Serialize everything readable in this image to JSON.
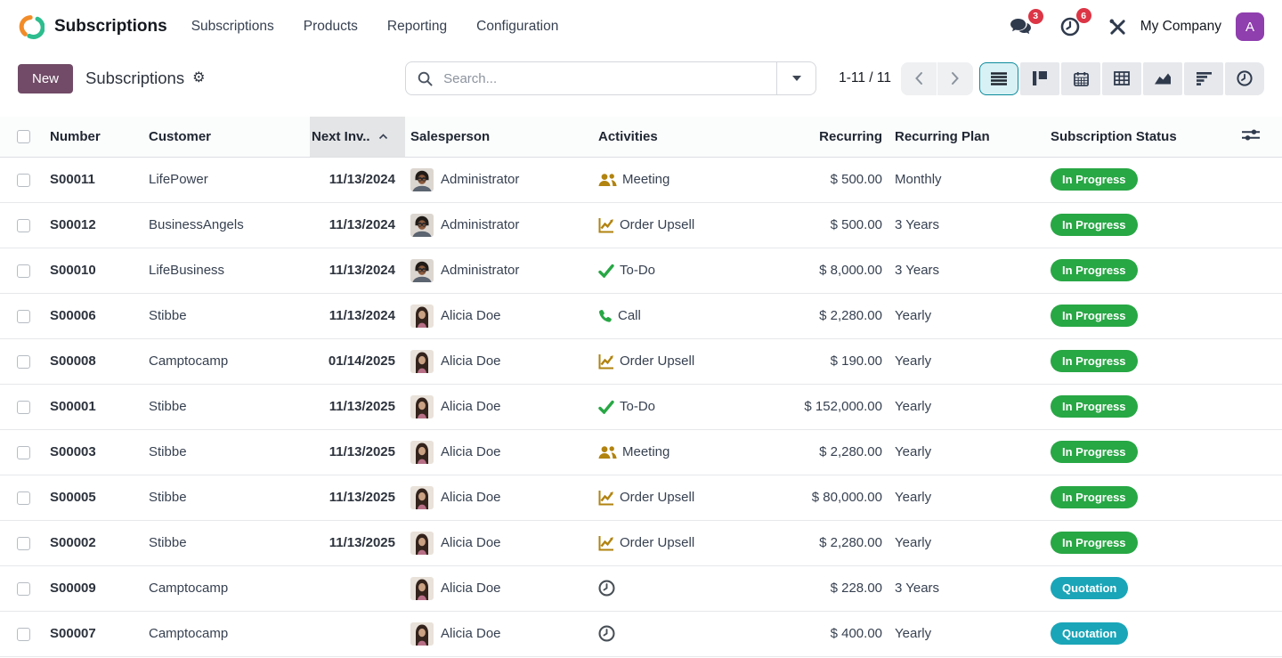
{
  "navbar": {
    "app_title": "Subscriptions",
    "menu_items": [
      "Subscriptions",
      "Products",
      "Reporting",
      "Configuration"
    ],
    "messages_badge": "3",
    "activities_badge": "6",
    "company_name": "My Company",
    "avatar_letter": "A"
  },
  "control_panel": {
    "new_button": "New",
    "breadcrumb_title": "Subscriptions",
    "search_placeholder": "Search...",
    "pager": "1-11 / 11",
    "active_view": "list",
    "views": [
      "list",
      "kanban",
      "calendar",
      "pivot",
      "graph",
      "gantt",
      "activity"
    ]
  },
  "table": {
    "sorted_column": "next_invoice",
    "sort_direction": "asc",
    "headers": {
      "number": "Number",
      "customer": "Customer",
      "next_invoice": "Next Inv..",
      "salesperson": "Salesperson",
      "activities": "Activities",
      "recurring": "Recurring",
      "recurring_plan": "Recurring Plan",
      "subscription_status": "Subscription Status"
    },
    "rows": [
      {
        "number": "S00011",
        "customer": "LifePower",
        "next_invoice": "11/13/2024",
        "salesperson": "Administrator",
        "avatar": "admin-avatar",
        "activity": {
          "icon": "meeting-icon",
          "label": "Meeting",
          "color": "gold"
        },
        "recurring": "$ 500.00",
        "plan": "Monthly",
        "status": {
          "label": "In Progress",
          "type": "in_progress"
        }
      },
      {
        "number": "S00012",
        "customer": "BusinessAngels",
        "next_invoice": "11/13/2024",
        "salesperson": "Administrator",
        "avatar": "admin-avatar",
        "activity": {
          "icon": "upsell-icon",
          "label": "Order Upsell",
          "color": "gold"
        },
        "recurring": "$ 500.00",
        "plan": "3 Years",
        "status": {
          "label": "In Progress",
          "type": "in_progress"
        }
      },
      {
        "number": "S00010",
        "customer": "LifeBusiness",
        "next_invoice": "11/13/2024",
        "salesperson": "Administrator",
        "avatar": "admin-avatar",
        "activity": {
          "icon": "todo-icon",
          "label": "To-Do",
          "color": "green"
        },
        "recurring": "$ 8,000.00",
        "plan": "3 Years",
        "status": {
          "label": "In Progress",
          "type": "in_progress"
        }
      },
      {
        "number": "S00006",
        "customer": "Stibbe",
        "next_invoice": "11/13/2024",
        "salesperson": "Alicia Doe",
        "avatar": "alicia-avatar",
        "activity": {
          "icon": "call-icon",
          "label": "Call",
          "color": "green"
        },
        "recurring": "$ 2,280.00",
        "plan": "Yearly",
        "status": {
          "label": "In Progress",
          "type": "in_progress"
        }
      },
      {
        "number": "S00008",
        "customer": "Camptocamp",
        "next_invoice": "01/14/2025",
        "salesperson": "Alicia Doe",
        "avatar": "alicia-avatar",
        "activity": {
          "icon": "upsell-icon",
          "label": "Order Upsell",
          "color": "gold"
        },
        "recurring": "$ 190.00",
        "plan": "Yearly",
        "status": {
          "label": "In Progress",
          "type": "in_progress"
        }
      },
      {
        "number": "S00001",
        "customer": "Stibbe",
        "next_invoice": "11/13/2025",
        "salesperson": "Alicia Doe",
        "avatar": "alicia-avatar",
        "activity": {
          "icon": "todo-icon",
          "label": "To-Do",
          "color": "green"
        },
        "recurring": "$ 152,000.00",
        "plan": "Yearly",
        "status": {
          "label": "In Progress",
          "type": "in_progress"
        }
      },
      {
        "number": "S00003",
        "customer": "Stibbe",
        "next_invoice": "11/13/2025",
        "salesperson": "Alicia Doe",
        "avatar": "alicia-avatar",
        "activity": {
          "icon": "meeting-icon",
          "label": "Meeting",
          "color": "gold"
        },
        "recurring": "$ 2,280.00",
        "plan": "Yearly",
        "status": {
          "label": "In Progress",
          "type": "in_progress"
        }
      },
      {
        "number": "S00005",
        "customer": "Stibbe",
        "next_invoice": "11/13/2025",
        "salesperson": "Alicia Doe",
        "avatar": "alicia-avatar",
        "activity": {
          "icon": "upsell-icon",
          "label": "Order Upsell",
          "color": "gold"
        },
        "recurring": "$ 80,000.00",
        "plan": "Yearly",
        "status": {
          "label": "In Progress",
          "type": "in_progress"
        }
      },
      {
        "number": "S00002",
        "customer": "Stibbe",
        "next_invoice": "11/13/2025",
        "salesperson": "Alicia Doe",
        "avatar": "alicia-avatar",
        "activity": {
          "icon": "upsell-icon",
          "label": "Order Upsell",
          "color": "gold"
        },
        "recurring": "$ 2,280.00",
        "plan": "Yearly",
        "status": {
          "label": "In Progress",
          "type": "in_progress"
        }
      },
      {
        "number": "S00009",
        "customer": "Camptocamp",
        "next_invoice": "",
        "salesperson": "Alicia Doe",
        "avatar": "alicia-avatar",
        "activity": {
          "icon": "clock-icon",
          "label": "",
          "color": "muted"
        },
        "recurring": "$ 228.00",
        "plan": "3 Years",
        "status": {
          "label": "Quotation",
          "type": "quotation"
        }
      },
      {
        "number": "S00007",
        "customer": "Camptocamp",
        "next_invoice": "",
        "salesperson": "Alicia Doe",
        "avatar": "alicia-avatar",
        "activity": {
          "icon": "clock-icon",
          "label": "",
          "color": "muted"
        },
        "recurring": "$ 400.00",
        "plan": "Yearly",
        "status": {
          "label": "Quotation",
          "type": "quotation"
        }
      }
    ]
  },
  "icon_names": [
    "app-logo-icon",
    "messages-icon",
    "activity-clock-icon",
    "tools-icon",
    "gear-icon",
    "search-icon",
    "caret-down-icon",
    "previous-page-icon",
    "next-page-icon",
    "list-view-icon",
    "kanban-view-icon",
    "calendar-view-icon",
    "pivot-view-icon",
    "graph-view-icon",
    "gantt-view-icon",
    "activity-view-icon",
    "sort-asc-icon",
    "options-icon",
    "meeting-icon",
    "upsell-icon",
    "todo-icon",
    "call-icon",
    "clock-icon",
    "admin-avatar",
    "alicia-avatar"
  ],
  "colors": {
    "accent": "#714B67",
    "badge_red": "#dc3545",
    "in_progress_badge": "#28a745",
    "quotation_badge": "#1aa5b8",
    "activity_gold": "#b1830f",
    "activity_green": "#28a745",
    "active_view_teal": "#0c8a9c",
    "avatar_purple": "#8f3fae",
    "logo_orange": "#f28c28",
    "logo_green": "#2dbd8e"
  }
}
